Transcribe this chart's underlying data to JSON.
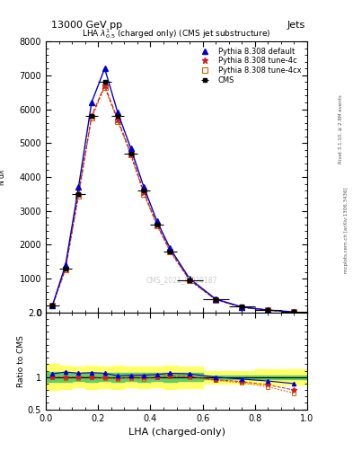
{
  "title_top": "13000 GeV pp",
  "title_right": "Jets",
  "plot_title": "LHA $\\lambda^{1}_{0.5}$ (charged only) (CMS jet substructure)",
  "xlabel": "LHA (charged-only)",
  "ylabel_ratio": "Ratio to CMS",
  "watermark": "CMS_2021_I1920187",
  "rivet_text": "Rivet 3.1.10, ≥ 2.8M events",
  "arxiv_text": "mcplots.cern.ch [arXiv:1306.3436]",
  "x_centers": [
    0.025,
    0.075,
    0.125,
    0.175,
    0.225,
    0.275,
    0.325,
    0.375,
    0.425,
    0.475,
    0.55,
    0.65,
    0.75,
    0.85,
    0.95
  ],
  "x_edges": [
    0.0,
    0.05,
    0.1,
    0.15,
    0.2,
    0.25,
    0.3,
    0.35,
    0.4,
    0.45,
    0.5,
    0.6,
    0.7,
    0.8,
    0.9,
    1.0
  ],
  "cms_y": [
    200,
    1300,
    3500,
    5800,
    6800,
    5800,
    4700,
    3600,
    2600,
    1800,
    950,
    400,
    170,
    80,
    20
  ],
  "pythia_default_y": [
    210,
    1400,
    3700,
    6200,
    7200,
    5900,
    4850,
    3700,
    2700,
    1900,
    1000,
    400,
    165,
    75,
    18
  ],
  "pythia_4c_y": [
    200,
    1300,
    3500,
    5800,
    6700,
    5700,
    4700,
    3550,
    2600,
    1830,
    960,
    385,
    158,
    70,
    16
  ],
  "pythia_4cx_y": [
    198,
    1280,
    3450,
    5750,
    6650,
    5650,
    4650,
    3500,
    2580,
    1810,
    950,
    380,
    155,
    68,
    15
  ],
  "color_cms": "#000000",
  "color_default": "#0000cc",
  "color_4c": "#cc2222",
  "color_4cx": "#cc6600",
  "ylim_main": [
    0,
    8000
  ],
  "xlim": [
    0.0,
    1.0
  ],
  "yticks_main": [
    0,
    1000,
    2000,
    3000,
    4000,
    5000,
    6000,
    7000,
    8000
  ],
  "ratio_ylim": [
    0.5,
    2.0
  ],
  "ratio_yticks": [
    0.5,
    1.0,
    2.0
  ],
  "cms_green_lo": [
    0.92,
    0.93,
    0.94,
    0.93,
    0.94,
    0.93,
    0.94,
    0.93,
    0.94,
    0.93,
    0.94,
    0.97,
    0.97,
    0.97,
    0.97
  ],
  "cms_green_hi": [
    1.08,
    1.07,
    1.06,
    1.07,
    1.06,
    1.07,
    1.06,
    1.07,
    1.06,
    1.07,
    1.06,
    1.03,
    1.03,
    1.03,
    1.03
  ],
  "cms_yellow_lo": [
    0.8,
    0.82,
    0.84,
    0.82,
    0.83,
    0.82,
    0.84,
    0.83,
    0.84,
    0.82,
    0.83,
    0.9,
    0.9,
    0.88,
    0.88
  ],
  "cms_yellow_hi": [
    1.2,
    1.18,
    1.16,
    1.18,
    1.17,
    1.18,
    1.16,
    1.17,
    1.16,
    1.18,
    1.17,
    1.1,
    1.1,
    1.12,
    1.12
  ],
  "ratio_default": [
    1.05,
    1.08,
    1.06,
    1.07,
    1.06,
    1.02,
    1.03,
    1.03,
    1.04,
    1.06,
    1.05,
    1.0,
    0.97,
    0.94,
    0.9
  ],
  "ratio_4c": [
    1.0,
    1.0,
    1.0,
    1.0,
    0.99,
    0.98,
    1.0,
    0.99,
    1.0,
    1.02,
    1.01,
    0.96,
    0.93,
    0.88,
    0.8
  ],
  "ratio_4cx": [
    0.99,
    0.985,
    0.986,
    0.991,
    0.978,
    0.974,
    0.989,
    0.972,
    0.992,
    1.006,
    1.0,
    0.95,
    0.912,
    0.85,
    0.75
  ]
}
